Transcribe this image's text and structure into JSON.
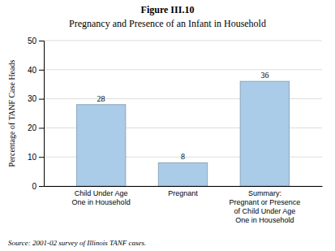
{
  "chart_data": {
    "type": "bar",
    "title": "Figure III.10",
    "subtitle": "Pregnancy and Presence of an Infant in Household",
    "categories": [
      "Child Under Age\nOne in Household",
      "Pregnant",
      "Summary:\nPregnant or Presence\nof Child Under Age\nOne in Household"
    ],
    "values": [
      28,
      8,
      36
    ],
    "color": "#aacce8",
    "ylabel": "Percentage of TANF Case Heads",
    "ylim": [
      0,
      50
    ],
    "yticks": [
      0,
      10,
      20,
      30,
      40,
      50
    ],
    "grid": true,
    "data_labels": true,
    "source": "Source:  2001-02 survey of Illinois TANF cases."
  }
}
